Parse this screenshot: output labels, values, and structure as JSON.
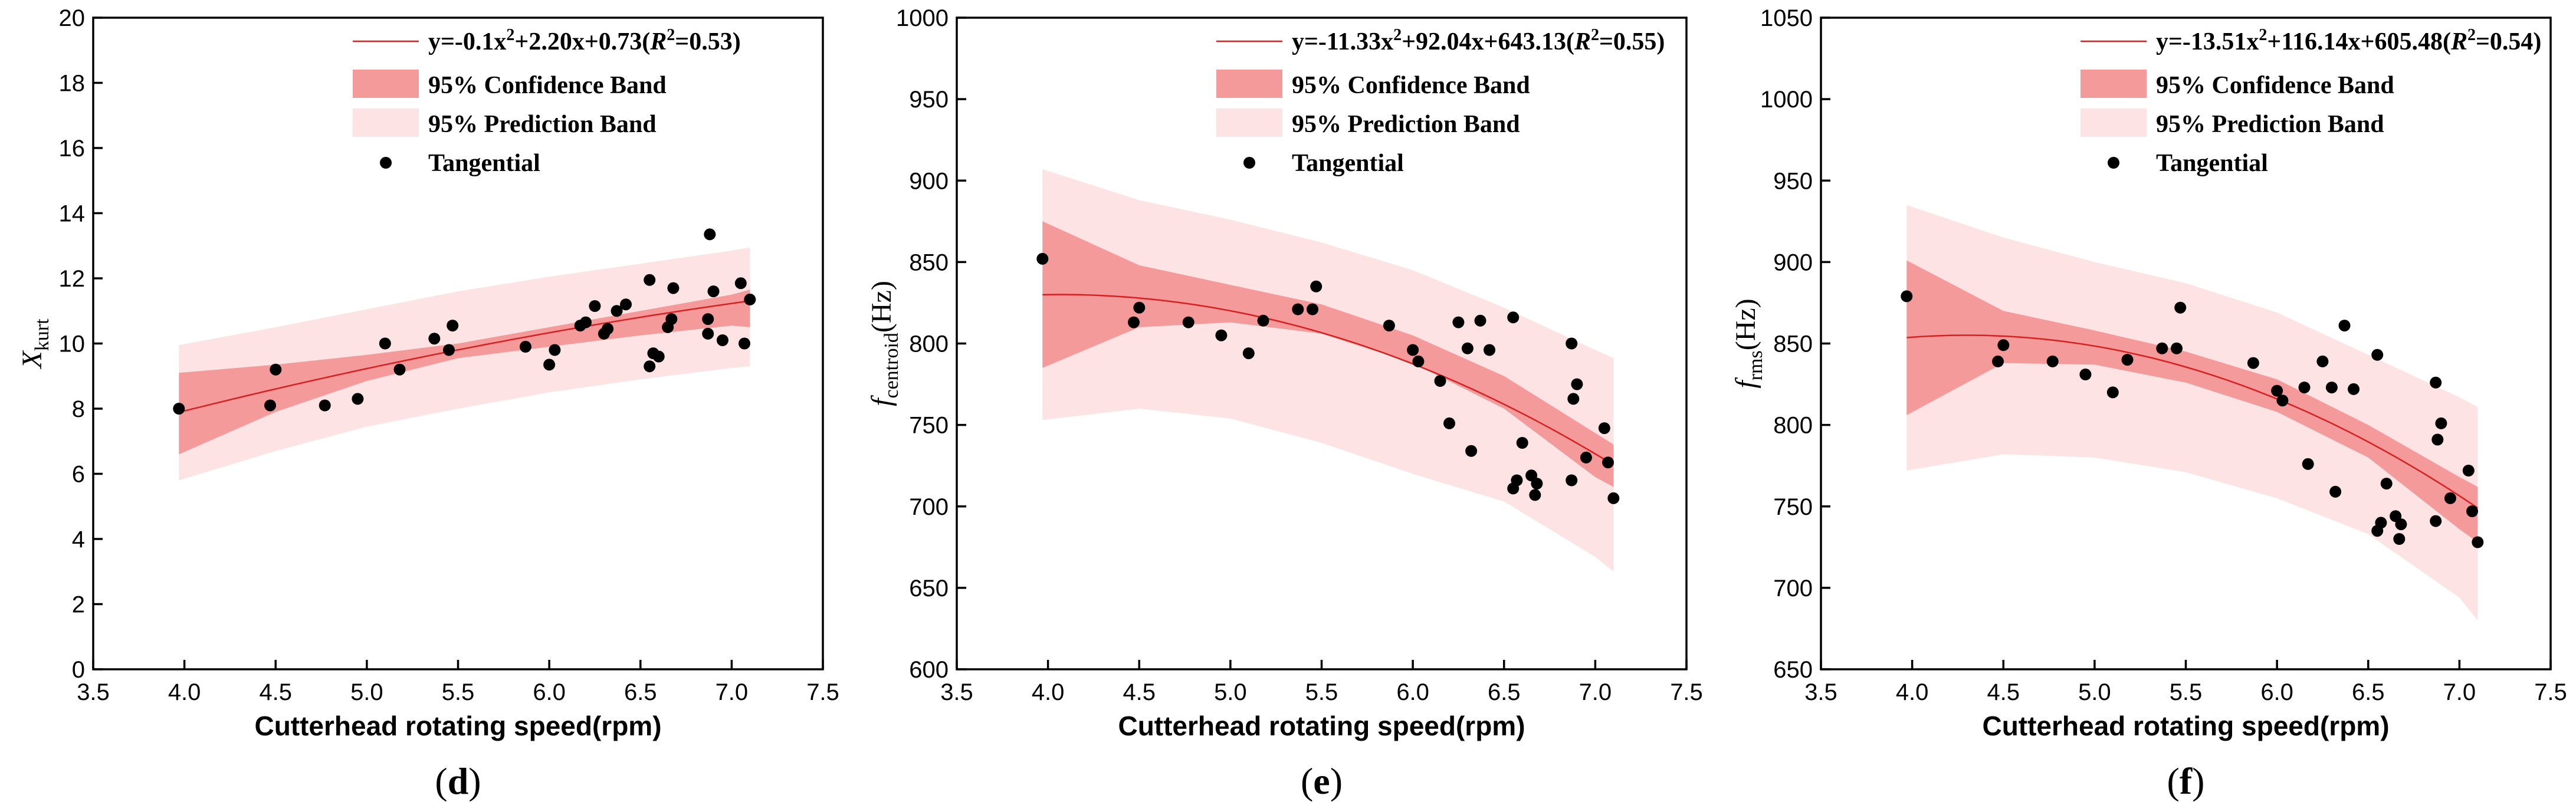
{
  "colors": {
    "fit": "#d92020",
    "confidence_band": "#f59a9a",
    "prediction_band": "#fde3e3",
    "point": "#000000"
  },
  "chart_data": [
    {
      "type": "scatter",
      "panel_label": "d",
      "xlabel": "Cutterhead rotating speed(rpm)",
      "ylabel_main": "X",
      "ylabel_sub": "kurt",
      "ylabel_suffix": "",
      "xlim": [
        3.5,
        7.5
      ],
      "ylim": [
        0,
        20
      ],
      "xticks": [
        3.5,
        4.0,
        4.5,
        5.0,
        5.5,
        6.0,
        6.5,
        7.0,
        7.5
      ],
      "xtick_labels": [
        "3.5",
        "4.0",
        "4.5",
        "5.0",
        "5.5",
        "6.0",
        "6.5",
        "7.0",
        "7.5"
      ],
      "yticks": [
        0,
        2,
        4,
        6,
        8,
        10,
        12,
        14,
        16,
        18,
        20
      ],
      "ytick_labels": [
        "0",
        "2",
        "4",
        "6",
        "8",
        "10",
        "12",
        "14",
        "16",
        "18",
        "20"
      ],
      "legend": {
        "fit_prefix": "y=-0.1x",
        "fit_middle": "+2.20x+0.73(",
        "fit_r": "R",
        "fit_suffix": "=0.53)",
        "sup2": "2",
        "confidence": "95% Confidence Band",
        "prediction": "95% Prediction Band",
        "points": "Tangential"
      },
      "fit": {
        "a": -0.1,
        "b": 2.2,
        "c": 0.73,
        "x_range": [
          3.97,
          7.1
        ]
      },
      "band_x": [
        3.97,
        4.5,
        5.0,
        5.5,
        6.0,
        6.5,
        7.0,
        7.1
      ],
      "confidence_upper": [
        9.1,
        9.35,
        9.65,
        10.0,
        10.5,
        11.0,
        11.5,
        11.65
      ],
      "confidence_lower": [
        6.6,
        7.9,
        8.85,
        9.55,
        9.9,
        10.25,
        10.55,
        10.5
      ],
      "prediction_upper": [
        9.95,
        10.5,
        11.05,
        11.6,
        12.05,
        12.45,
        12.85,
        12.95
      ],
      "prediction_lower": [
        5.8,
        6.7,
        7.45,
        8.0,
        8.5,
        8.9,
        9.25,
        9.3
      ],
      "points": [
        [
          3.97,
          8.0
        ],
        [
          4.47,
          8.1
        ],
        [
          4.5,
          9.2
        ],
        [
          4.77,
          8.1
        ],
        [
          4.95,
          8.3
        ],
        [
          5.1,
          10.0
        ],
        [
          5.18,
          9.2
        ],
        [
          5.37,
          10.15
        ],
        [
          5.45,
          9.8
        ],
        [
          5.47,
          10.55
        ],
        [
          5.87,
          9.9
        ],
        [
          6.0,
          9.35
        ],
        [
          6.03,
          9.8
        ],
        [
          6.17,
          10.55
        ],
        [
          6.2,
          10.65
        ],
        [
          6.25,
          11.15
        ],
        [
          6.3,
          10.3
        ],
        [
          6.32,
          10.45
        ],
        [
          6.37,
          11.0
        ],
        [
          6.42,
          11.2
        ],
        [
          6.55,
          9.3
        ],
        [
          6.55,
          11.95
        ],
        [
          6.57,
          9.7
        ],
        [
          6.6,
          9.6
        ],
        [
          6.65,
          10.5
        ],
        [
          6.67,
          10.75
        ],
        [
          6.68,
          11.7
        ],
        [
          6.87,
          10.3
        ],
        [
          6.87,
          10.75
        ],
        [
          6.88,
          13.35
        ],
        [
          6.9,
          11.6
        ],
        [
          6.95,
          10.1
        ],
        [
          7.05,
          11.85
        ],
        [
          7.07,
          10.0
        ],
        [
          7.1,
          11.35
        ]
      ]
    },
    {
      "type": "scatter",
      "panel_label": "e",
      "xlabel": "Cutterhead rotating speed(rpm)",
      "ylabel_main": "f",
      "ylabel_sub": "centroid",
      "ylabel_suffix": "(Hz)",
      "xlim": [
        3.5,
        7.5
      ],
      "ylim": [
        600,
        1000
      ],
      "xticks": [
        3.5,
        4.0,
        4.5,
        5.0,
        5.5,
        6.0,
        6.5,
        7.0,
        7.5
      ],
      "xtick_labels": [
        "3.5",
        "4.0",
        "4.5",
        "5.0",
        "5.5",
        "6.0",
        "6.5",
        "7.0",
        "7.5"
      ],
      "yticks": [
        600,
        650,
        700,
        750,
        800,
        850,
        900,
        950,
        1000
      ],
      "ytick_labels": [
        "600",
        "650",
        "700",
        "750",
        "800",
        "850",
        "900",
        "950",
        "1000"
      ],
      "legend": {
        "fit_prefix": "y=-11.33x",
        "fit_middle": "+92.04x+643.13(",
        "fit_r": "R",
        "fit_suffix": "=0.55)",
        "sup2": "2",
        "confidence": "95% Confidence Band",
        "prediction": "95% Prediction Band",
        "points": "Tangential"
      },
      "fit": {
        "a": -11.33,
        "b": 92.04,
        "c": 643.13,
        "x_range": [
          3.97,
          7.1
        ]
      },
      "band_x": [
        3.97,
        4.5,
        5.0,
        5.5,
        6.0,
        6.5,
        7.0,
        7.1
      ],
      "confidence_upper": [
        875,
        848,
        836,
        824,
        805,
        780,
        745,
        738
      ],
      "confidence_lower": [
        785,
        810,
        813,
        806,
        788,
        760,
        718,
        712
      ],
      "prediction_upper": [
        907,
        888,
        876,
        862,
        845,
        822,
        796,
        791
      ],
      "prediction_lower": [
        753,
        760,
        754,
        739,
        720,
        703,
        669,
        660
      ],
      "points": [
        [
          3.97,
          852
        ],
        [
          4.47,
          813
        ],
        [
          4.5,
          822
        ],
        [
          4.77,
          813
        ],
        [
          4.95,
          805
        ],
        [
          5.1,
          794
        ],
        [
          5.18,
          814
        ],
        [
          5.37,
          821
        ],
        [
          5.45,
          821
        ],
        [
          5.47,
          835
        ],
        [
          5.87,
          811
        ],
        [
          6.0,
          796
        ],
        [
          6.03,
          789
        ],
        [
          6.15,
          777
        ],
        [
          6.2,
          751
        ],
        [
          6.25,
          813
        ],
        [
          6.3,
          797
        ],
        [
          6.32,
          734
        ],
        [
          6.37,
          814
        ],
        [
          6.42,
          796
        ],
        [
          6.55,
          816
        ],
        [
          6.55,
          711
        ],
        [
          6.57,
          716
        ],
        [
          6.6,
          739
        ],
        [
          6.65,
          719
        ],
        [
          6.67,
          707
        ],
        [
          6.68,
          714
        ],
        [
          6.87,
          800
        ],
        [
          6.87,
          716
        ],
        [
          6.88,
          766
        ],
        [
          6.9,
          775
        ],
        [
          6.95,
          730
        ],
        [
          7.05,
          748
        ],
        [
          7.07,
          727
        ],
        [
          7.1,
          705
        ]
      ]
    },
    {
      "type": "scatter",
      "panel_label": "f",
      "xlabel": "Cutterhead rotating speed(rpm)",
      "ylabel_main": "f",
      "ylabel_sub": "rms",
      "ylabel_suffix": "(Hz)",
      "xlim": [
        3.5,
        7.5
      ],
      "ylim": [
        650,
        1050
      ],
      "xticks": [
        3.5,
        4.0,
        4.5,
        5.0,
        5.5,
        6.0,
        6.5,
        7.0,
        7.5
      ],
      "xtick_labels": [
        "3.5",
        "4.0",
        "4.5",
        "5.0",
        "5.5",
        "6.0",
        "6.5",
        "7.0",
        "7.5"
      ],
      "yticks": [
        650,
        700,
        750,
        800,
        850,
        900,
        950,
        1000,
        1050
      ],
      "ytick_labels": [
        "650",
        "700",
        "750",
        "800",
        "850",
        "900",
        "950",
        "1000",
        "1050"
      ],
      "legend": {
        "fit_prefix": "y=-13.51x",
        "fit_middle": "+116.14x+605.48(",
        "fit_r": "R",
        "fit_suffix": "=0.54)",
        "sup2": "2",
        "confidence": "95% Confidence Band",
        "prediction": "95% Prediction Band",
        "points": "Tangential"
      },
      "fit": {
        "a": -13.51,
        "b": 116.14,
        "c": 605.48,
        "x_range": [
          3.97,
          7.1
        ]
      },
      "band_x": [
        3.97,
        4.5,
        5.0,
        5.5,
        6.0,
        6.5,
        7.0,
        7.1
      ],
      "confidence_upper": [
        901,
        870,
        858,
        845,
        828,
        800,
        768,
        762
      ],
      "confidence_lower": [
        806,
        838,
        837,
        826,
        808,
        780,
        736,
        728
      ],
      "prediction_upper": [
        935,
        915,
        900,
        887,
        869,
        843,
        817,
        811
      ],
      "prediction_lower": [
        772,
        782,
        780,
        771,
        755,
        733,
        694,
        680
      ],
      "points": [
        [
          3.97,
          879
        ],
        [
          4.47,
          839
        ],
        [
          4.5,
          849
        ],
        [
          4.77,
          839
        ],
        [
          4.95,
          831
        ],
        [
          5.1,
          820
        ],
        [
          5.18,
          840
        ],
        [
          5.37,
          847
        ],
        [
          5.45,
          847
        ],
        [
          5.47,
          872
        ],
        [
          5.87,
          838
        ],
        [
          6.0,
          821
        ],
        [
          6.03,
          815
        ],
        [
          6.15,
          823
        ],
        [
          6.17,
          776
        ],
        [
          6.25,
          839
        ],
        [
          6.3,
          823
        ],
        [
          6.32,
          759
        ],
        [
          6.37,
          861
        ],
        [
          6.42,
          822
        ],
        [
          6.55,
          843
        ],
        [
          6.55,
          735
        ],
        [
          6.57,
          740
        ],
        [
          6.6,
          764
        ],
        [
          6.65,
          744
        ],
        [
          6.67,
          730
        ],
        [
          6.68,
          739
        ],
        [
          6.87,
          826
        ],
        [
          6.87,
          741
        ],
        [
          6.88,
          791
        ],
        [
          6.9,
          801
        ],
        [
          6.95,
          755
        ],
        [
          7.05,
          772
        ],
        [
          7.07,
          747
        ],
        [
          7.1,
          728
        ]
      ]
    }
  ]
}
